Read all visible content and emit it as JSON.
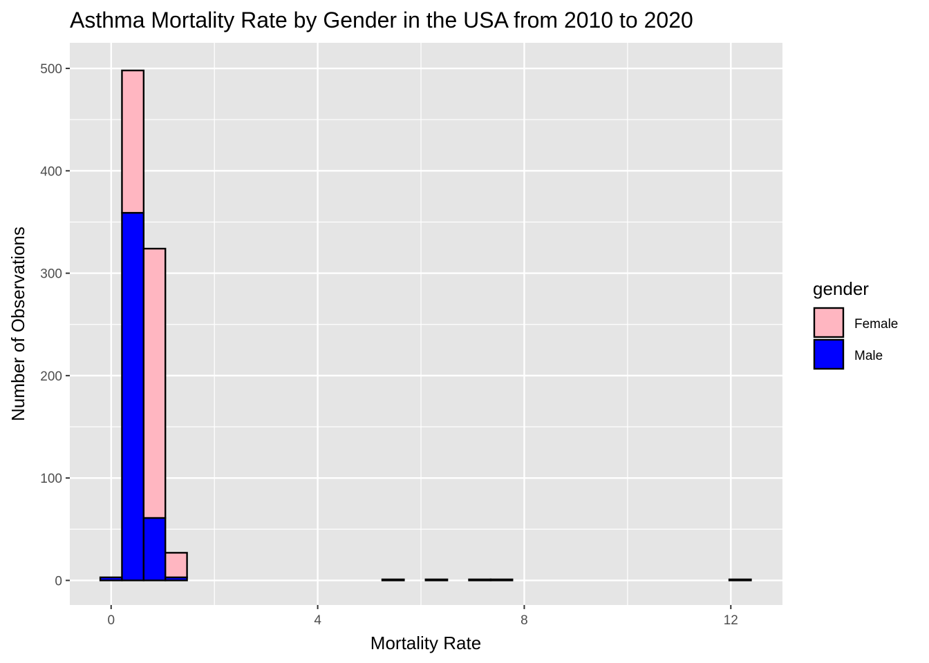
{
  "chart_data": {
    "type": "bar",
    "stacked": true,
    "title": "Asthma Mortality Rate by Gender in the USA from 2010 to 2020",
    "xlabel": "Mortality Rate",
    "ylabel": "Number of Observations",
    "xlim": [
      -0.8,
      13.0
    ],
    "ylim": [
      -24,
      525
    ],
    "x_ticks": [
      0,
      4,
      8,
      12
    ],
    "y_ticks": [
      0,
      100,
      200,
      300,
      400,
      500
    ],
    "grid": true,
    "legend": {
      "title": "gender",
      "position": "right"
    },
    "bins": [
      {
        "x0": -0.21,
        "x1": 0.21
      },
      {
        "x0": 0.21,
        "x1": 0.63
      },
      {
        "x0": 0.63,
        "x1": 1.05
      },
      {
        "x0": 1.05,
        "x1": 1.47
      },
      {
        "x0": 1.47,
        "x1": 1.89
      },
      {
        "x0": 1.89,
        "x1": 2.31
      },
      {
        "x0": 2.31,
        "x1": 2.73
      },
      {
        "x0": 2.73,
        "x1": 3.15
      },
      {
        "x0": 3.15,
        "x1": 3.57
      },
      {
        "x0": 3.57,
        "x1": 3.99
      },
      {
        "x0": 3.99,
        "x1": 4.41
      },
      {
        "x0": 4.41,
        "x1": 4.83
      },
      {
        "x0": 4.83,
        "x1": 5.25
      },
      {
        "x0": 5.25,
        "x1": 5.67
      },
      {
        "x0": 5.67,
        "x1": 6.09
      },
      {
        "x0": 6.09,
        "x1": 6.51
      },
      {
        "x0": 6.51,
        "x1": 6.93
      },
      {
        "x0": 6.93,
        "x1": 7.35
      },
      {
        "x0": 7.35,
        "x1": 7.77
      },
      {
        "x0": 7.77,
        "x1": 8.19
      },
      {
        "x0": 8.19,
        "x1": 8.61
      },
      {
        "x0": 8.61,
        "x1": 9.03
      },
      {
        "x0": 9.03,
        "x1": 9.45
      },
      {
        "x0": 9.45,
        "x1": 9.87
      },
      {
        "x0": 9.87,
        "x1": 10.29
      },
      {
        "x0": 10.29,
        "x1": 10.71
      },
      {
        "x0": 10.71,
        "x1": 11.13
      },
      {
        "x0": 11.13,
        "x1": 11.55
      },
      {
        "x0": 11.55,
        "x1": 11.97
      },
      {
        "x0": 11.97,
        "x1": 12.39
      }
    ],
    "series": [
      {
        "name": "Male",
        "color": "#0000ff",
        "values": [
          3,
          359,
          61,
          3,
          0,
          0,
          0,
          0,
          0,
          0,
          0,
          0,
          0,
          0,
          0,
          0,
          0,
          0,
          0,
          0,
          0,
          0,
          0,
          0,
          0,
          0,
          0,
          0,
          0,
          0
        ]
      },
      {
        "name": "Female",
        "color": "#ffb6c1",
        "values": [
          0,
          139,
          263,
          24,
          0,
          0,
          0,
          0,
          0,
          0,
          0,
          0,
          0,
          1,
          0,
          1,
          0,
          1,
          1,
          0,
          0,
          0,
          0,
          0,
          0,
          0,
          0,
          0,
          0,
          1
        ]
      }
    ]
  },
  "legend": {
    "title": "gender",
    "items": [
      {
        "label": "Female",
        "color": "#ffb6c1"
      },
      {
        "label": "Male",
        "color": "#0000ff"
      }
    ]
  },
  "colors": {
    "panel_background": "#e5e5e5",
    "gridline": "#ffffff",
    "bar_outline": "#000000"
  }
}
